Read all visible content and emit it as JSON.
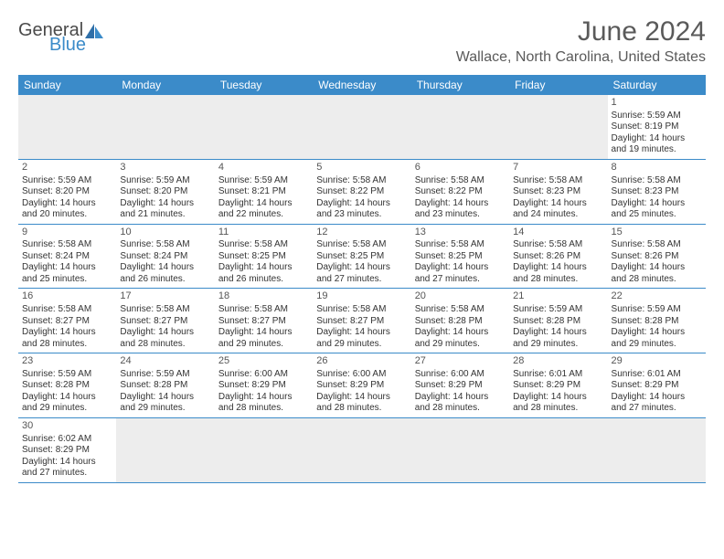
{
  "logo": {
    "part1": "General",
    "part2": "Blue"
  },
  "title": "June 2024",
  "location": "Wallace, North Carolina, United States",
  "colors": {
    "header_bg": "#3b8bc9",
    "header_text": "#ffffff",
    "text": "#333333",
    "title_text": "#5a5a5a",
    "border": "#3b8bc9",
    "empty_bg": "#ededed"
  },
  "day_names": [
    "Sunday",
    "Monday",
    "Tuesday",
    "Wednesday",
    "Thursday",
    "Friday",
    "Saturday"
  ],
  "weeks": [
    [
      null,
      null,
      null,
      null,
      null,
      null,
      {
        "n": "1",
        "sr": "Sunrise: 5:59 AM",
        "ss": "Sunset: 8:19 PM",
        "d1": "Daylight: 14 hours",
        "d2": "and 19 minutes."
      }
    ],
    [
      {
        "n": "2",
        "sr": "Sunrise: 5:59 AM",
        "ss": "Sunset: 8:20 PM",
        "d1": "Daylight: 14 hours",
        "d2": "and 20 minutes."
      },
      {
        "n": "3",
        "sr": "Sunrise: 5:59 AM",
        "ss": "Sunset: 8:20 PM",
        "d1": "Daylight: 14 hours",
        "d2": "and 21 minutes."
      },
      {
        "n": "4",
        "sr": "Sunrise: 5:59 AM",
        "ss": "Sunset: 8:21 PM",
        "d1": "Daylight: 14 hours",
        "d2": "and 22 minutes."
      },
      {
        "n": "5",
        "sr": "Sunrise: 5:58 AM",
        "ss": "Sunset: 8:22 PM",
        "d1": "Daylight: 14 hours",
        "d2": "and 23 minutes."
      },
      {
        "n": "6",
        "sr": "Sunrise: 5:58 AM",
        "ss": "Sunset: 8:22 PM",
        "d1": "Daylight: 14 hours",
        "d2": "and 23 minutes."
      },
      {
        "n": "7",
        "sr": "Sunrise: 5:58 AM",
        "ss": "Sunset: 8:23 PM",
        "d1": "Daylight: 14 hours",
        "d2": "and 24 minutes."
      },
      {
        "n": "8",
        "sr": "Sunrise: 5:58 AM",
        "ss": "Sunset: 8:23 PM",
        "d1": "Daylight: 14 hours",
        "d2": "and 25 minutes."
      }
    ],
    [
      {
        "n": "9",
        "sr": "Sunrise: 5:58 AM",
        "ss": "Sunset: 8:24 PM",
        "d1": "Daylight: 14 hours",
        "d2": "and 25 minutes."
      },
      {
        "n": "10",
        "sr": "Sunrise: 5:58 AM",
        "ss": "Sunset: 8:24 PM",
        "d1": "Daylight: 14 hours",
        "d2": "and 26 minutes."
      },
      {
        "n": "11",
        "sr": "Sunrise: 5:58 AM",
        "ss": "Sunset: 8:25 PM",
        "d1": "Daylight: 14 hours",
        "d2": "and 26 minutes."
      },
      {
        "n": "12",
        "sr": "Sunrise: 5:58 AM",
        "ss": "Sunset: 8:25 PM",
        "d1": "Daylight: 14 hours",
        "d2": "and 27 minutes."
      },
      {
        "n": "13",
        "sr": "Sunrise: 5:58 AM",
        "ss": "Sunset: 8:25 PM",
        "d1": "Daylight: 14 hours",
        "d2": "and 27 minutes."
      },
      {
        "n": "14",
        "sr": "Sunrise: 5:58 AM",
        "ss": "Sunset: 8:26 PM",
        "d1": "Daylight: 14 hours",
        "d2": "and 28 minutes."
      },
      {
        "n": "15",
        "sr": "Sunrise: 5:58 AM",
        "ss": "Sunset: 8:26 PM",
        "d1": "Daylight: 14 hours",
        "d2": "and 28 minutes."
      }
    ],
    [
      {
        "n": "16",
        "sr": "Sunrise: 5:58 AM",
        "ss": "Sunset: 8:27 PM",
        "d1": "Daylight: 14 hours",
        "d2": "and 28 minutes."
      },
      {
        "n": "17",
        "sr": "Sunrise: 5:58 AM",
        "ss": "Sunset: 8:27 PM",
        "d1": "Daylight: 14 hours",
        "d2": "and 28 minutes."
      },
      {
        "n": "18",
        "sr": "Sunrise: 5:58 AM",
        "ss": "Sunset: 8:27 PM",
        "d1": "Daylight: 14 hours",
        "d2": "and 29 minutes."
      },
      {
        "n": "19",
        "sr": "Sunrise: 5:58 AM",
        "ss": "Sunset: 8:27 PM",
        "d1": "Daylight: 14 hours",
        "d2": "and 29 minutes."
      },
      {
        "n": "20",
        "sr": "Sunrise: 5:58 AM",
        "ss": "Sunset: 8:28 PM",
        "d1": "Daylight: 14 hours",
        "d2": "and 29 minutes."
      },
      {
        "n": "21",
        "sr": "Sunrise: 5:59 AM",
        "ss": "Sunset: 8:28 PM",
        "d1": "Daylight: 14 hours",
        "d2": "and 29 minutes."
      },
      {
        "n": "22",
        "sr": "Sunrise: 5:59 AM",
        "ss": "Sunset: 8:28 PM",
        "d1": "Daylight: 14 hours",
        "d2": "and 29 minutes."
      }
    ],
    [
      {
        "n": "23",
        "sr": "Sunrise: 5:59 AM",
        "ss": "Sunset: 8:28 PM",
        "d1": "Daylight: 14 hours",
        "d2": "and 29 minutes."
      },
      {
        "n": "24",
        "sr": "Sunrise: 5:59 AM",
        "ss": "Sunset: 8:28 PM",
        "d1": "Daylight: 14 hours",
        "d2": "and 29 minutes."
      },
      {
        "n": "25",
        "sr": "Sunrise: 6:00 AM",
        "ss": "Sunset: 8:29 PM",
        "d1": "Daylight: 14 hours",
        "d2": "and 28 minutes."
      },
      {
        "n": "26",
        "sr": "Sunrise: 6:00 AM",
        "ss": "Sunset: 8:29 PM",
        "d1": "Daylight: 14 hours",
        "d2": "and 28 minutes."
      },
      {
        "n": "27",
        "sr": "Sunrise: 6:00 AM",
        "ss": "Sunset: 8:29 PM",
        "d1": "Daylight: 14 hours",
        "d2": "and 28 minutes."
      },
      {
        "n": "28",
        "sr": "Sunrise: 6:01 AM",
        "ss": "Sunset: 8:29 PM",
        "d1": "Daylight: 14 hours",
        "d2": "and 28 minutes."
      },
      {
        "n": "29",
        "sr": "Sunrise: 6:01 AM",
        "ss": "Sunset: 8:29 PM",
        "d1": "Daylight: 14 hours",
        "d2": "and 27 minutes."
      }
    ],
    [
      {
        "n": "30",
        "sr": "Sunrise: 6:02 AM",
        "ss": "Sunset: 8:29 PM",
        "d1": "Daylight: 14 hours",
        "d2": "and 27 minutes."
      },
      null,
      null,
      null,
      null,
      null,
      null
    ]
  ]
}
